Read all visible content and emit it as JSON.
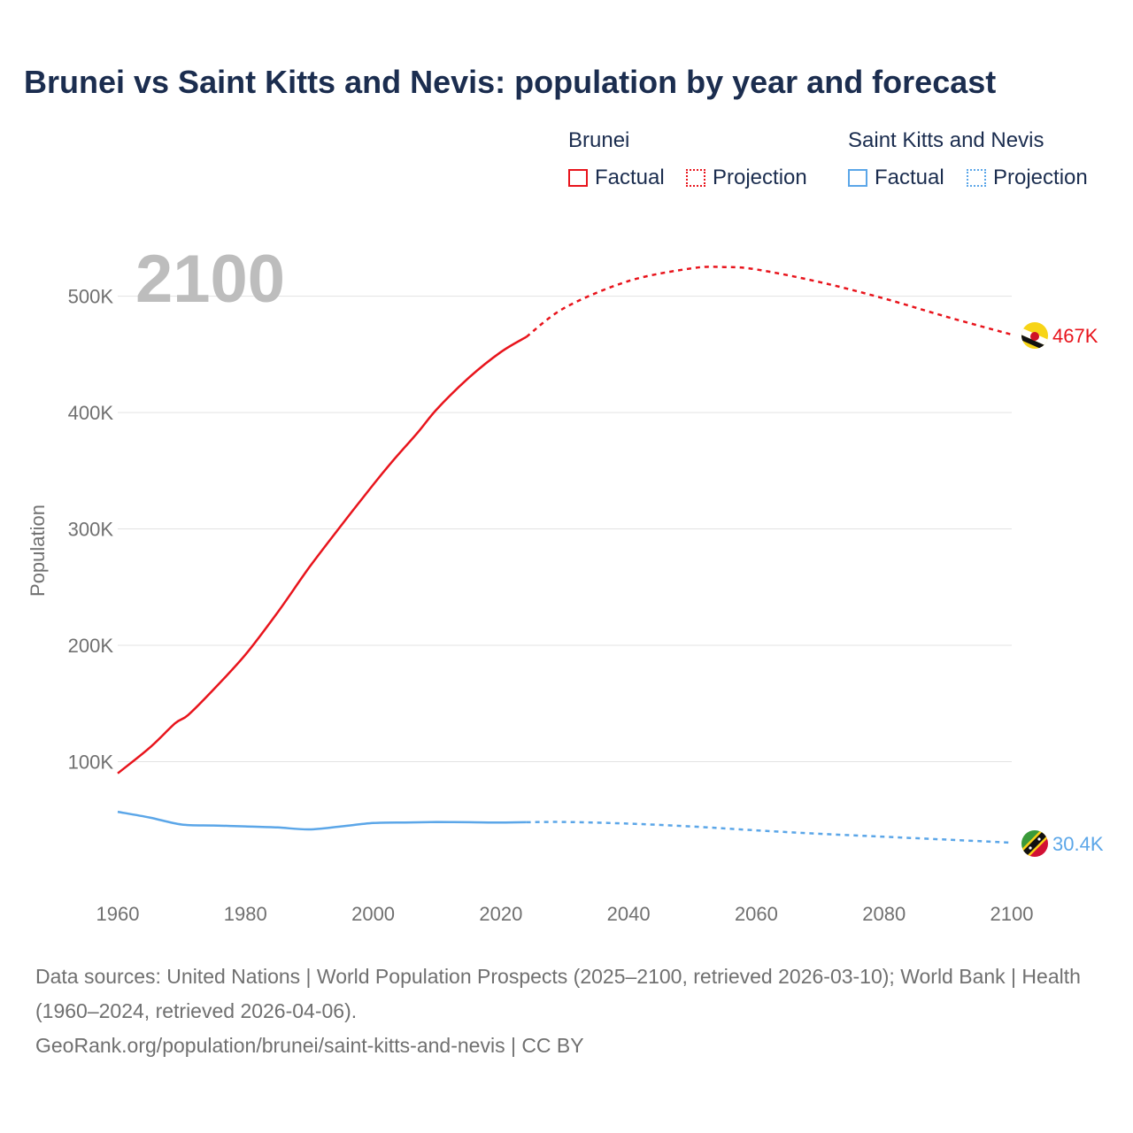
{
  "title": "Brunei vs Saint Kitts and Nevis: population by year and forecast",
  "legend": {
    "groups": [
      {
        "name": "Brunei",
        "color": "#e8141c",
        "factual_label": "Factual",
        "projection_label": "Projection"
      },
      {
        "name": "Saint Kitts and Nevis",
        "color": "#5ba6e8",
        "factual_label": "Factual",
        "projection_label": "Projection"
      }
    ]
  },
  "chart_data": {
    "type": "line",
    "title": "Brunei vs Saint Kitts and Nevis: population by year and forecast",
    "xlabel": "",
    "ylabel": "Population",
    "xlim": [
      1960,
      2100
    ],
    "ylim": [
      0,
      540000
    ],
    "x_ticks": [
      1960,
      1980,
      2000,
      2020,
      2040,
      2060,
      2080,
      2100
    ],
    "y_ticks": [
      100000,
      200000,
      300000,
      400000,
      500000
    ],
    "y_tick_labels": [
      "100K",
      "200K",
      "300K",
      "400K",
      "500K"
    ],
    "current_year_label": "2100",
    "series": [
      {
        "name": "Brunei",
        "color": "#e8141c",
        "end_label": "467K",
        "factual": {
          "x": [
            1960,
            1965,
            1969,
            1971,
            1975,
            1980,
            1985,
            1990,
            1995,
            2000,
            2003,
            2007,
            2010,
            2015,
            2020,
            2024
          ],
          "y": [
            90000,
            112000,
            133000,
            140000,
            162000,
            192000,
            228000,
            267000,
            303000,
            338000,
            358000,
            383000,
            403000,
            430000,
            452000,
            465000
          ]
        },
        "projection": {
          "x": [
            2024,
            2030,
            2040,
            2050,
            2055,
            2060,
            2070,
            2080,
            2090,
            2100
          ],
          "y": [
            465000,
            490000,
            513000,
            524000,
            525000,
            523000,
            512000,
            498000,
            482000,
            467000
          ]
        }
      },
      {
        "name": "Saint Kitts and Nevis",
        "color": "#5ba6e8",
        "end_label": "30.4K",
        "factual": {
          "x": [
            1960,
            1965,
            1970,
            1975,
            1980,
            1985,
            1990,
            1995,
            2000,
            2005,
            2010,
            2015,
            2020,
            2024
          ],
          "y": [
            57000,
            52000,
            46000,
            45200,
            44400,
            43500,
            41800,
            44400,
            47300,
            47800,
            48200,
            48000,
            47700,
            48000
          ]
        },
        "projection": {
          "x": [
            2024,
            2030,
            2040,
            2050,
            2060,
            2070,
            2080,
            2090,
            2100
          ],
          "y": [
            48000,
            48200,
            46800,
            44300,
            41000,
            38000,
            35500,
            33000,
            30400
          ]
        }
      }
    ]
  },
  "footer": {
    "sources": "Data sources: United Nations | World Population Prospects (2025–2100, retrieved 2026-03-10); World Bank | Health (1960–2024, retrieved 2026-04-06).",
    "credit": "GeoRank.org/population/brunei/saint-kitts-and-nevis | CC BY"
  }
}
